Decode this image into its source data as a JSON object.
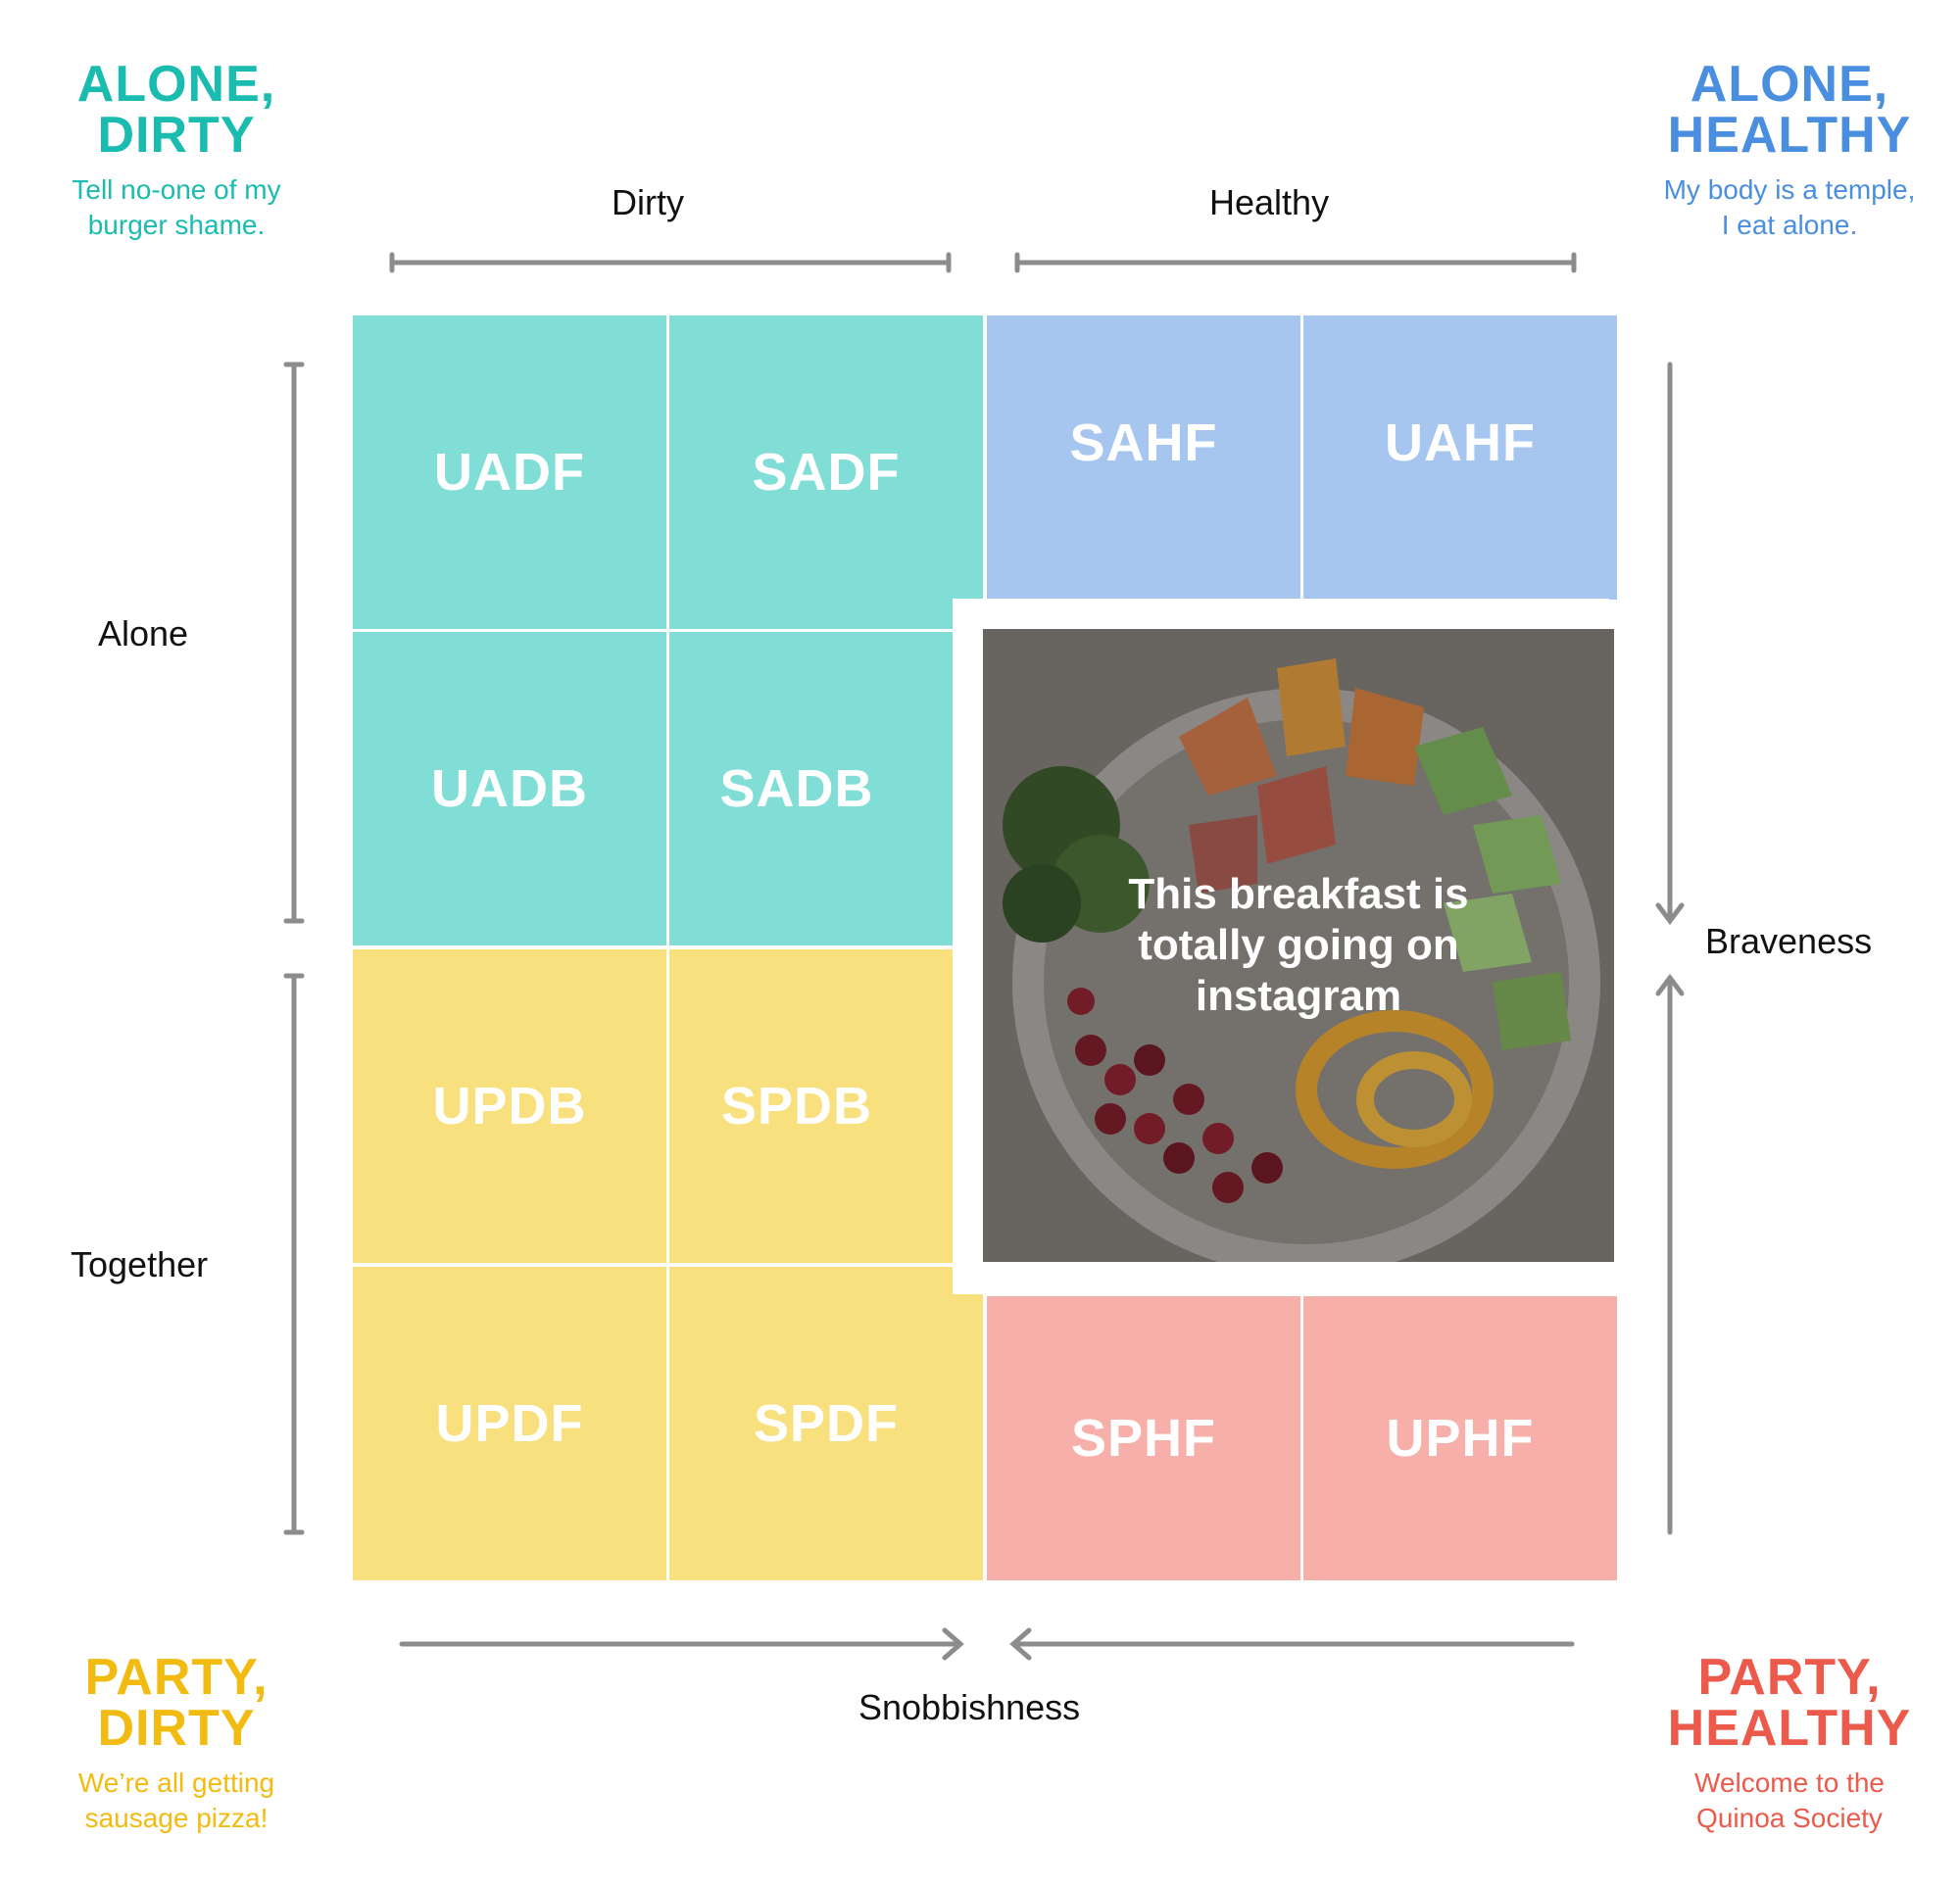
{
  "corners": {
    "top_left": {
      "title": [
        "ALONE,",
        "DIRTY"
      ],
      "subtitle": [
        "Tell no-one of my",
        "burger shame."
      ],
      "color": "#1abcb0"
    },
    "top_right": {
      "title": [
        "ALONE,",
        "HEALTHY"
      ],
      "subtitle": [
        "My body is a temple,",
        "I eat alone."
      ],
      "color": "#4a8ee0"
    },
    "bottom_left": {
      "title": [
        "PARTY,",
        "DIRTY"
      ],
      "subtitle": [
        "We’re all getting",
        "sausage pizza!"
      ],
      "color": "#f2bb12"
    },
    "bottom_right": {
      "title": [
        "PARTY,",
        "HEALTHY"
      ],
      "subtitle": [
        "Welcome to the",
        "Quinoa Society"
      ],
      "color": "#ec5a4c"
    }
  },
  "axes": {
    "top_left_label": "Dirty",
    "top_right_label": "Healthy",
    "left_top_label": "Alone",
    "left_bottom_label": "Together",
    "right_label": "Braveness",
    "bottom_label": "Snobbishness"
  },
  "grid": {
    "row1": [
      "UADF",
      "SADF",
      "SAHF",
      "UAHF"
    ],
    "row2": [
      "UADB",
      "SADB"
    ],
    "row3": [
      "UPDB",
      "SPDB"
    ],
    "row4": [
      "UPDF",
      "SPDF",
      "SPHF",
      "UPHF"
    ]
  },
  "photo": {
    "caption": "This breakfast is totally going on instagram",
    "icon": "food-bowl-photo"
  },
  "colors": {
    "teal": "#80ded7",
    "blue": "#a6c6f0",
    "yellow": "#f9e07f",
    "pink": "#f7afa9",
    "axis_gray": "#8c8c8c"
  }
}
